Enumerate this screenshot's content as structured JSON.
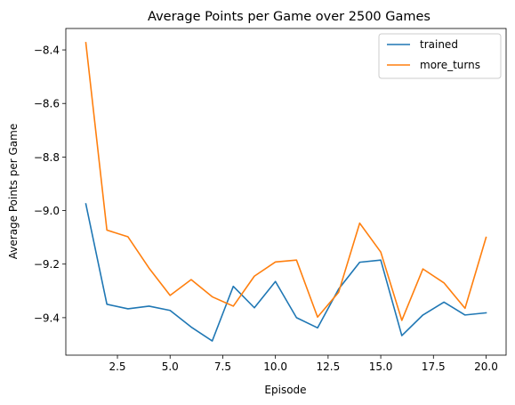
{
  "chart_data": {
    "type": "line",
    "title": "Average Points per Game over 2500 Games",
    "xlabel": "Episode",
    "ylabel": "Average Points per Game",
    "x": [
      1,
      2,
      3,
      4,
      5,
      6,
      7,
      8,
      9,
      10,
      11,
      12,
      13,
      14,
      15,
      16,
      17,
      18,
      19,
      20
    ],
    "xlim": [
      0.05,
      20.95
    ],
    "ylim": [
      -9.54,
      -8.32
    ],
    "xticks": [
      2.5,
      5.0,
      7.5,
      10.0,
      12.5,
      15.0,
      17.5,
      20.0
    ],
    "xtick_labels": [
      "2.5",
      "5.0",
      "7.5",
      "10.0",
      "12.5",
      "15.0",
      "17.5",
      "20.0"
    ],
    "yticks": [
      -9.4,
      -9.2,
      -9.0,
      -8.8,
      -8.6,
      -8.4
    ],
    "ytick_labels": [
      "−9.4",
      "−9.2",
      "−9.0",
      "−8.8",
      "−8.6",
      "−8.4"
    ],
    "grid": false,
    "legend_position": "top-right",
    "series": [
      {
        "name": "trained",
        "color": "#1f77b4",
        "values": [
          -8.975,
          -9.35,
          -9.367,
          -9.357,
          -9.373,
          -9.435,
          -9.487,
          -9.283,
          -9.363,
          -9.265,
          -9.4,
          -9.438,
          -9.293,
          -9.193,
          -9.185,
          -9.467,
          -9.39,
          -9.342,
          -9.39,
          -9.382
        ]
      },
      {
        "name": "more_turns",
        "color": "#ff7f0e",
        "values": [
          -8.373,
          -9.073,
          -9.098,
          -9.215,
          -9.317,
          -9.258,
          -9.322,
          -9.357,
          -9.245,
          -9.192,
          -9.185,
          -9.398,
          -9.305,
          -9.047,
          -9.155,
          -9.41,
          -9.218,
          -9.27,
          -9.365,
          -9.1
        ]
      }
    ]
  }
}
